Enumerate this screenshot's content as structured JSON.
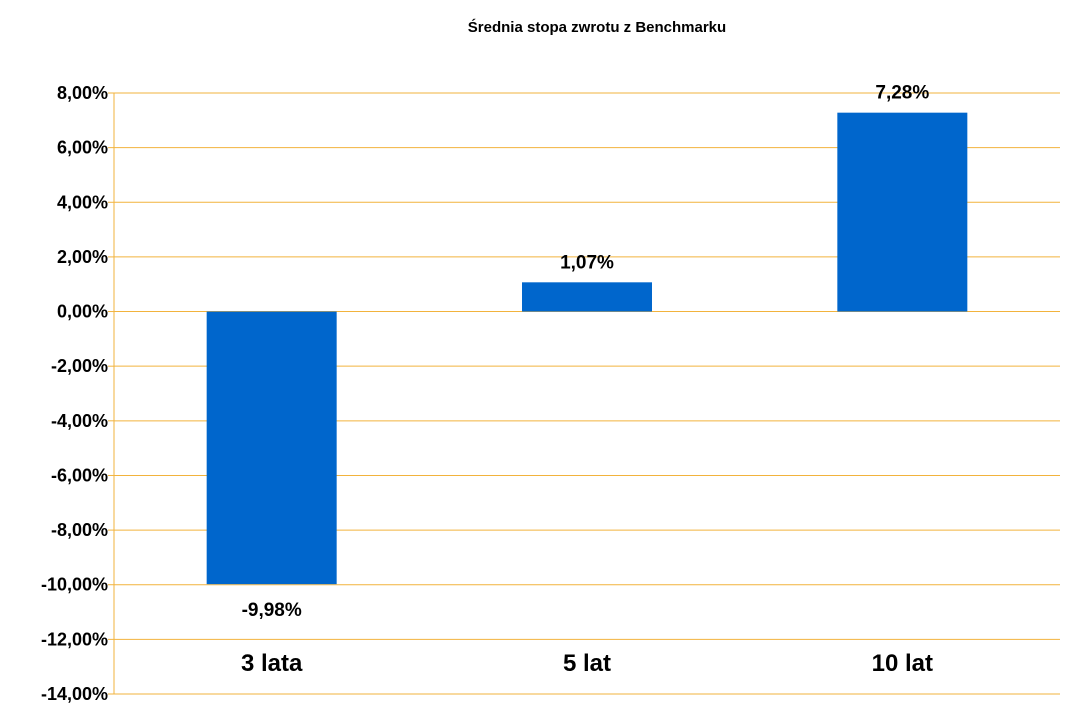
{
  "colors": {
    "bar": "#0066CC",
    "grid": "#F2B33D",
    "text": "#000000",
    "background": "#FFFFFF"
  },
  "chart_data": {
    "type": "bar",
    "title": "Średnia stopa zwrotu z Benchmarku",
    "xlabel": "",
    "ylabel": "",
    "categories": [
      "3 lata",
      "5 lat",
      "10 lat"
    ],
    "values": [
      -9.98,
      1.07,
      7.28
    ],
    "data_labels": [
      "-9,98%",
      "1,07%",
      "7,28%"
    ],
    "ylim": [
      -14,
      8
    ],
    "yticks": [
      8,
      6,
      4,
      2,
      0,
      -2,
      -4,
      -6,
      -8,
      -10,
      -12,
      -14
    ],
    "ytick_labels": [
      "8,00%",
      "6,00%",
      "4,00%",
      "2,00%",
      "0,00%",
      "-2,00%",
      "-4,00%",
      "-6,00%",
      "-8,00%",
      "-10,00%",
      "-12,00%",
      "-14,00%"
    ],
    "grid": true,
    "legend": "none"
  }
}
